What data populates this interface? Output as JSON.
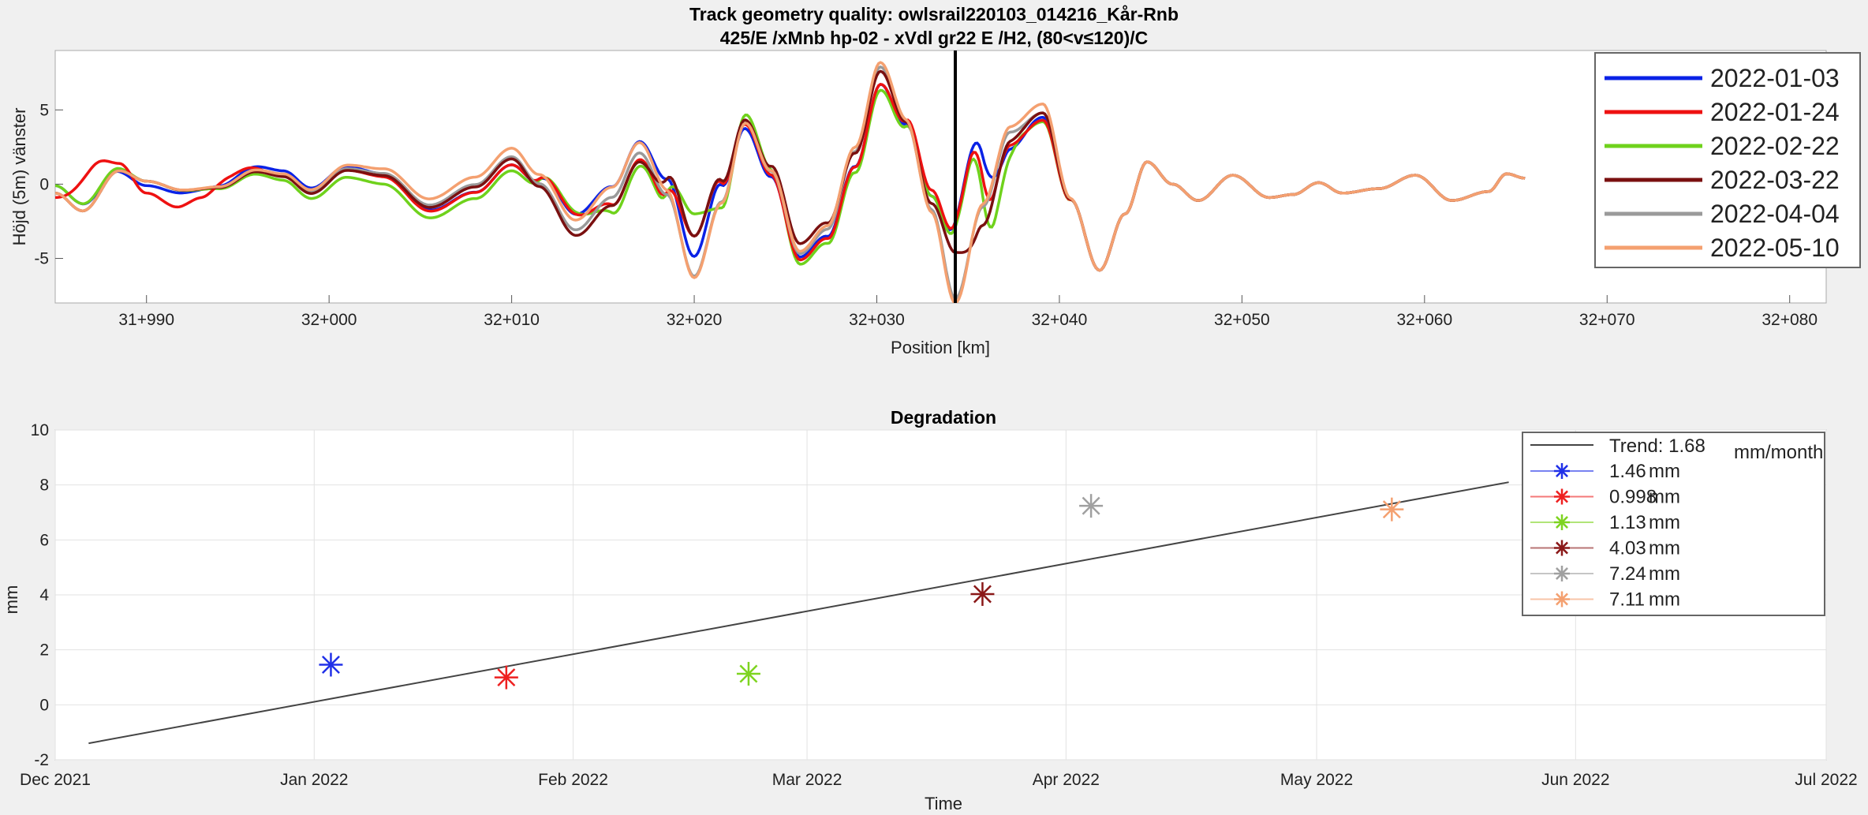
{
  "chart_data": [
    {
      "type": "line",
      "title": "Track geometry quality: owlsrail220103_014216_Kår-Rnb",
      "subtitle": "425/E /xMnb hp-02 - xVdl gr22 E /H2, (80<v≤120)/C",
      "xlabel": "Position [km]",
      "ylabel": "Höjd (5m) vänster",
      "xlim": [
        31985,
        32082
      ],
      "ylim": [
        -8,
        9
      ],
      "xticks": [
        31990,
        32000,
        32010,
        32020,
        32030,
        32040,
        32050,
        32060,
        32070,
        32080
      ],
      "xtick_labels": [
        "31+990",
        "32+000",
        "32+010",
        "32+020",
        "32+030",
        "32+040",
        "32+050",
        "32+060",
        "32+070",
        "32+080"
      ],
      "yticks": [
        -5,
        0,
        5
      ],
      "marker_line_x": 32034.3,
      "legend_position": "top-right",
      "base_profile": [
        [
          31985,
          -0.6
        ],
        [
          31986.5,
          -1.8
        ],
        [
          31988.5,
          0.9
        ],
        [
          31990,
          0.2
        ],
        [
          31992,
          -0.4
        ],
        [
          31994,
          -0.2
        ],
        [
          31996,
          0.9
        ],
        [
          31997.5,
          0.6
        ],
        [
          31999,
          -0.5
        ],
        [
          32001,
          1.1
        ],
        [
          32003,
          0.8
        ],
        [
          32005.5,
          -1.3
        ],
        [
          32008,
          0.1
        ],
        [
          32010,
          2.0
        ],
        [
          32011.5,
          0.2
        ],
        [
          32013.5,
          -2.9
        ],
        [
          32015.5,
          -0.7
        ],
        [
          32017,
          2.3
        ],
        [
          32018.5,
          -0.5
        ],
        [
          32020,
          -6.0
        ],
        [
          32021.5,
          -1.0
        ],
        [
          32022.8,
          4.3
        ],
        [
          32024.2,
          1.0
        ],
        [
          32025.8,
          -4.6
        ],
        [
          32027.3,
          -3.0
        ],
        [
          32028.8,
          2.2
        ],
        [
          32030.2,
          7.9
        ],
        [
          32031.6,
          4.5
        ],
        [
          32033,
          -1.0
        ],
        [
          32034.3,
          -6.8
        ],
        [
          32035.8,
          -1.5
        ],
        [
          32037.3,
          3.5
        ],
        [
          32039.1,
          4.8
        ],
        [
          32040.6,
          -1.0
        ],
        [
          32042.2,
          -5.8
        ],
        [
          32043.6,
          -2.0
        ],
        [
          32044.8,
          1.5
        ],
        [
          32046.2,
          0.0
        ],
        [
          32047.6,
          -1.1
        ],
        [
          32049.5,
          0.6
        ],
        [
          32051.5,
          -0.9
        ],
        [
          32052.8,
          -0.7
        ],
        [
          32054.2,
          0.1
        ],
        [
          32055.5,
          -0.6
        ],
        [
          32057.5,
          -0.3
        ],
        [
          32059.5,
          0.6
        ],
        [
          32061.5,
          -1.1
        ],
        [
          32063.5,
          -0.5
        ],
        [
          32064.5,
          0.7
        ],
        [
          32065.5,
          0.4
        ]
      ],
      "series": [
        {
          "name": "2022-01-03",
          "color": "#0a22e6",
          "values_dev": [
            [
              31986,
              0.5
            ],
            [
              31990,
              -0.3
            ],
            [
              31997,
              0.3
            ],
            [
              32010,
              -0.7
            ],
            [
              32013,
              0.9
            ],
            [
              32016,
              0.5
            ],
            [
              32021,
              1.2
            ],
            [
              32023,
              -0.6
            ],
            [
              32026,
              -0.3
            ],
            [
              32030,
              -1.2
            ],
            [
              32033,
              0.2
            ],
            [
              32035,
              5.8
            ],
            [
              32037,
              -1.2
            ],
            [
              32039,
              -0.3
            ],
            [
              32041,
              0
            ]
          ]
        },
        {
          "name": "2022-01-24",
          "color": "#ee1111",
          "values_dev": [
            [
              31985,
              -0.3
            ],
            [
              31987,
              2.5
            ],
            [
              31988.5,
              0.5
            ],
            [
              31990,
              -0.8
            ],
            [
              31991.5,
              -1.2
            ],
            [
              31993,
              -0.6
            ],
            [
              31994.5,
              0.5
            ],
            [
              31997,
              0
            ],
            [
              32010,
              -0.7
            ],
            [
              32013,
              1
            ],
            [
              32016,
              -0.8
            ],
            [
              32018,
              -0.5
            ],
            [
              32020,
              2.5
            ],
            [
              32023,
              -0.3
            ],
            [
              32026,
              -0.5
            ],
            [
              32030,
              -1.2
            ],
            [
              32033,
              0.6
            ],
            [
              32035,
              5.6
            ],
            [
              32036.5,
              -1
            ],
            [
              32039,
              -0.5
            ],
            [
              32041,
              0
            ]
          ]
        },
        {
          "name": "2022-02-22",
          "color": "#6fd21c",
          "values_dev": [
            [
              31986,
              0.5
            ],
            [
              31990,
              0
            ],
            [
              32010,
              -1.1
            ],
            [
              32013,
              1.2
            ],
            [
              32016,
              -1.4
            ],
            [
              32018,
              -0.8
            ],
            [
              32020,
              4
            ],
            [
              32021.5,
              -0.6
            ],
            [
              32023,
              0.4
            ],
            [
              32026,
              -0.8
            ],
            [
              32030,
              -1.6
            ],
            [
              32033,
              0.2
            ],
            [
              32035,
              5.3
            ],
            [
              32036.5,
              -3
            ],
            [
              32038,
              -0.6
            ],
            [
              32039,
              -0.6
            ],
            [
              32041,
              0
            ]
          ]
        },
        {
          "name": "2022-03-22",
          "color": "#7a1010",
          "values_dev": [
            [
              31990,
              0
            ],
            [
              32010,
              -0.3
            ],
            [
              32017,
              -0.8
            ],
            [
              32020,
              2.5
            ],
            [
              32023,
              0
            ],
            [
              32026,
              0.6
            ],
            [
              32030,
              -0.3
            ],
            [
              32033,
              -0.3
            ],
            [
              32034.3,
              2.2
            ],
            [
              32035.5,
              -1.3
            ],
            [
              32039,
              0
            ],
            [
              32041,
              0
            ]
          ]
        },
        {
          "name": "2022-04-04",
          "color": "#9a9a9a",
          "values_dev": [
            [
              31990,
              0
            ],
            [
              32020,
              -0.2
            ],
            [
              32030,
              0
            ],
            [
              32034.3,
              -0.9
            ],
            [
              32036,
              0
            ],
            [
              32039,
              0
            ]
          ]
        },
        {
          "name": "2022-05-10",
          "color": "#f4a070",
          "values_dev": [
            [
              31990,
              0
            ],
            [
              32017,
              0.5
            ],
            [
              32020,
              -0.3
            ],
            [
              32030,
              0.3
            ],
            [
              32034.3,
              -1.2
            ],
            [
              32036,
              0.2
            ],
            [
              32039,
              0.6
            ],
            [
              32041,
              0
            ]
          ]
        }
      ]
    },
    {
      "type": "scatter",
      "title": "Degradation",
      "xlabel": "Time",
      "ylabel": "mm",
      "xlim": [
        "2021-12-01",
        "2022-07-01"
      ],
      "ylim": [
        -2,
        10
      ],
      "xticks": [
        "2021-12-01",
        "2022-01-01",
        "2022-02-01",
        "2022-03-01",
        "2022-04-01",
        "2022-05-01",
        "2022-06-01",
        "2022-07-01"
      ],
      "xtick_labels": [
        "Dec 2021",
        "Jan 2022",
        "Feb 2022",
        "Mar 2022",
        "Apr 2022",
        "May 2022",
        "Jun 2022",
        "Jul 2022"
      ],
      "yticks": [
        -2,
        0,
        2,
        4,
        6,
        8,
        10
      ],
      "grid": true,
      "legend_position": "top-right",
      "trend": {
        "label": "Trend: 1.68",
        "unit": "mm/month",
        "slope_per_month": 1.68,
        "start": [
          "2021-12-05",
          -1.4
        ],
        "end": [
          "2022-05-24",
          8.1
        ]
      },
      "points": [
        {
          "date": "2022-01-03",
          "value": 1.46,
          "label": "1.46",
          "color": "#2030e8"
        },
        {
          "date": "2022-01-24",
          "value": 0.998,
          "label": "0.998",
          "color": "#ee2020"
        },
        {
          "date": "2022-02-22",
          "value": 1.13,
          "label": "1.13",
          "color": "#7ed420"
        },
        {
          "date": "2022-03-22",
          "value": 4.03,
          "label": "4.03",
          "color": "#8a1818"
        },
        {
          "date": "2022-04-04",
          "value": 7.24,
          "label": "7.24",
          "color": "#a0a0a0"
        },
        {
          "date": "2022-05-10",
          "value": 7.11,
          "label": "7.11",
          "color": "#f4a070"
        }
      ],
      "unit_label": "mm"
    }
  ]
}
